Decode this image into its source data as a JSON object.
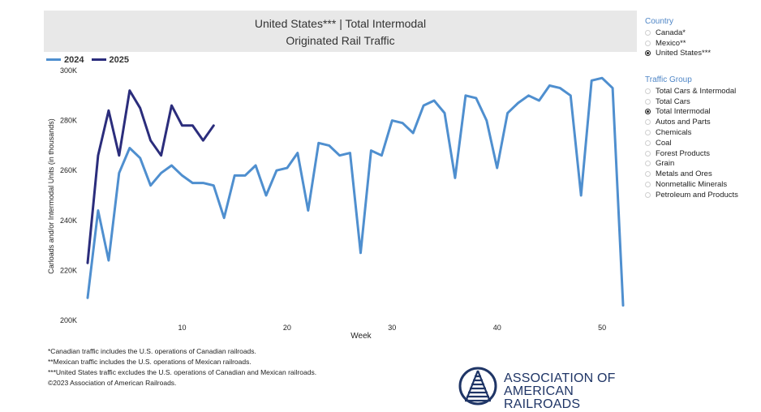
{
  "header": {
    "title_line1": "United States*** | Total Intermodal",
    "title_line2": "Originated Rail Traffic"
  },
  "legend": [
    {
      "label": "2024",
      "color": "#4f8fcf"
    },
    {
      "label": "2025",
      "color": "#2b2d7c"
    }
  ],
  "chart_data": {
    "type": "line",
    "title": "United States*** | Total Intermodal Originated Rail Traffic",
    "xlabel": "Week",
    "ylabel": "Carloads and/or Intermodal Units (in thousands)",
    "xlim": [
      1,
      52
    ],
    "ylim": [
      200,
      300
    ],
    "x_ticks": [
      10,
      20,
      30,
      40,
      50
    ],
    "y_ticks": [
      {
        "value": 200,
        "label": "200K"
      },
      {
        "value": 220,
        "label": "220K"
      },
      {
        "value": 240,
        "label": "240K"
      },
      {
        "value": 260,
        "label": "260K"
      },
      {
        "value": 280,
        "label": "280K"
      },
      {
        "value": 300,
        "label": "300K"
      }
    ],
    "series": [
      {
        "name": "2024",
        "color": "#4f8fcf",
        "x": [
          1,
          2,
          3,
          4,
          5,
          6,
          7,
          8,
          9,
          10,
          11,
          12,
          13,
          14,
          15,
          16,
          17,
          18,
          19,
          20,
          21,
          22,
          23,
          24,
          25,
          26,
          27,
          28,
          29,
          30,
          31,
          32,
          33,
          34,
          35,
          36,
          37,
          38,
          39,
          40,
          41,
          42,
          43,
          44,
          45,
          46,
          47,
          48,
          49,
          50,
          51,
          52
        ],
        "values": [
          209,
          244,
          224,
          259,
          269,
          265,
          254,
          259,
          262,
          258,
          255,
          255,
          254,
          241,
          258,
          258,
          262,
          250,
          260,
          261,
          267,
          244,
          271,
          270,
          266,
          267,
          227,
          268,
          266,
          280,
          279,
          275,
          286,
          288,
          283,
          257,
          290,
          289,
          280,
          261,
          283,
          287,
          290,
          288,
          294,
          293,
          290,
          250,
          296,
          297,
          293,
          206
        ]
      },
      {
        "name": "2025",
        "color": "#2b2d7c",
        "x": [
          1,
          2,
          3,
          4,
          5,
          6,
          7,
          8,
          9,
          10,
          11,
          12,
          13
        ],
        "values": [
          223,
          266,
          284,
          266,
          292,
          285,
          272,
          266,
          286,
          278,
          278,
          272,
          278
        ]
      }
    ]
  },
  "country": {
    "heading": "Country",
    "options": [
      {
        "label": "Canada*",
        "selected": false
      },
      {
        "label": "Mexico**",
        "selected": false
      },
      {
        "label": "United States***",
        "selected": true
      }
    ]
  },
  "traffic_group": {
    "heading": "Traffic Group",
    "options": [
      {
        "label": "Total Cars & Intermodal",
        "selected": false
      },
      {
        "label": "Total Cars",
        "selected": false
      },
      {
        "label": "Total Intermodal",
        "selected": true
      },
      {
        "label": "Autos and Parts",
        "selected": false
      },
      {
        "label": "Chemicals",
        "selected": false
      },
      {
        "label": "Coal",
        "selected": false
      },
      {
        "label": "Forest Products",
        "selected": false
      },
      {
        "label": "Grain",
        "selected": false
      },
      {
        "label": "Metals and Ores",
        "selected": false
      },
      {
        "label": "Nonmetallic Minerals",
        "selected": false
      },
      {
        "label": "Petroleum and Products",
        "selected": false
      }
    ]
  },
  "footnotes": [
    "*Canadian traffic includes the U.S. operations of Canadian railroads.",
    "**Mexican traffic includes the U.S. operations of Mexican railroads.",
    "***United States traffic excludes the U.S. operations of Canadian and Mexican railroads.",
    "©2023 Association of American Railroads."
  ],
  "logo": {
    "line1": "ASSOCIATION OF",
    "line2": "AMERICAN RAILROADS",
    "color": "#1f3566"
  }
}
